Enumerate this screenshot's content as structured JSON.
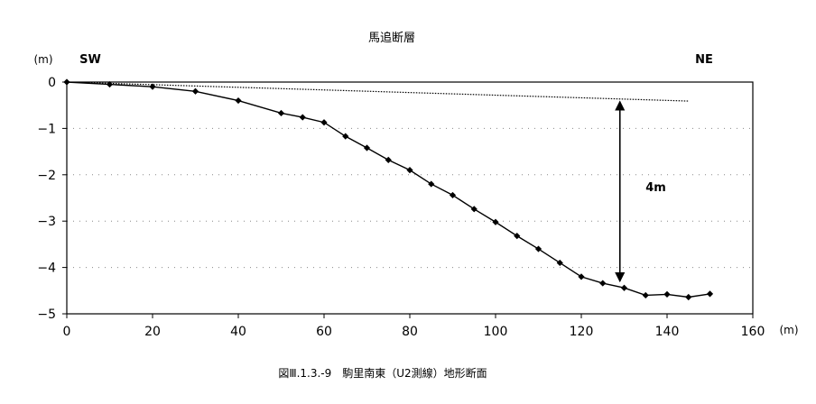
{
  "chart_data": {
    "type": "line",
    "title": "馬追断層",
    "caption": "図Ⅲ.1.3.-9　駒里南東（U2測線）地形断面",
    "x_unit": "(m)",
    "y_unit": "(m)",
    "xlim": [
      0,
      160
    ],
    "ylim": [
      -5,
      0
    ],
    "x_ticks": [
      0,
      20,
      40,
      60,
      80,
      100,
      120,
      140,
      160
    ],
    "y_ticks": [
      0,
      -1,
      -2,
      -3,
      -4,
      -5
    ],
    "y_tick_labels": [
      "0",
      "−1",
      "−2",
      "−3",
      "−4",
      "−5"
    ],
    "grid": "dotted horizontal",
    "left_label": "SW",
    "right_label": "NE",
    "series": [
      {
        "style": "solid-markers",
        "color": "#000000",
        "x": [
          0,
          10,
          20,
          30,
          40,
          50,
          55,
          60,
          65,
          70,
          75,
          80,
          85,
          90,
          95,
          100,
          105,
          110,
          115,
          120,
          125,
          130,
          135,
          140,
          145,
          150
        ],
        "y": [
          0,
          -0.05,
          -0.1,
          -0.2,
          -0.4,
          -0.67,
          -0.76,
          -0.87,
          -1.17,
          -1.42,
          -1.68,
          -1.9,
          -2.2,
          -2.44,
          -2.74,
          -3.02,
          -3.32,
          -3.6,
          -3.9,
          -4.2,
          -4.34,
          -4.44,
          -4.6,
          -4.58,
          -4.64,
          -4.57
        ]
      },
      {
        "style": "dotted",
        "color": "#000000",
        "x": [
          0,
          145
        ],
        "y": [
          0,
          -0.41
        ]
      }
    ],
    "annotations": [
      {
        "type": "double-arrow",
        "x": 129,
        "y_top": -0.42,
        "y_bottom": -4.3,
        "label": "4m",
        "label_x": 135,
        "label_y": -2.35
      }
    ]
  }
}
